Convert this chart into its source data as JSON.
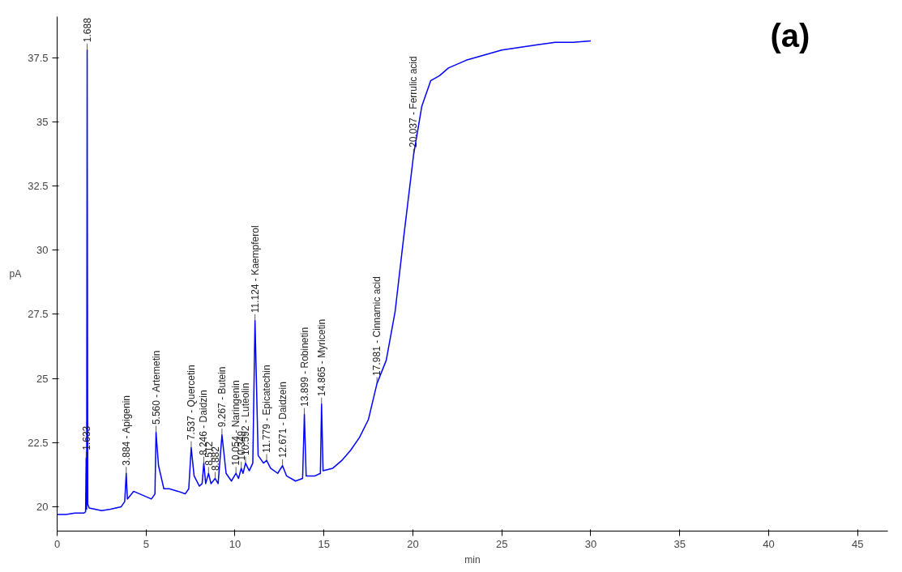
{
  "chart_data": {
    "type": "line",
    "xlabel": "min",
    "ylabel": "pA",
    "xlim": [
      0,
      46.7
    ],
    "ylim": [
      19.05,
      39.1
    ],
    "xticks": [
      0,
      5,
      10,
      15,
      20,
      25,
      30,
      35,
      40,
      45
    ],
    "yticks": [
      20,
      22.5,
      25,
      27.5,
      30,
      32.5,
      35,
      37.5
    ],
    "grid": false,
    "marker": "none",
    "line_style": "solid",
    "series": [
      {
        "color": "#0000ff",
        "x": [
          0,
          0.5,
          1.0,
          1.5,
          1.6,
          1.633,
          1.66,
          1.688,
          1.72,
          1.8,
          2.5,
          3.0,
          3.6,
          3.8,
          3.884,
          3.95,
          4.3,
          4.8,
          5.3,
          5.5,
          5.56,
          5.7,
          6.0,
          6.3,
          6.8,
          7.2,
          7.4,
          7.537,
          7.7,
          8.0,
          8.15,
          8.246,
          8.35,
          8.512,
          8.65,
          8.882,
          9.05,
          9.267,
          9.5,
          9.8,
          10.054,
          10.2,
          10.349,
          10.45,
          10.592,
          10.8,
          11.0,
          11.124,
          11.3,
          11.6,
          11.779,
          12.0,
          12.4,
          12.671,
          12.9,
          13.4,
          13.8,
          13.899,
          14.0,
          14.5,
          14.8,
          14.865,
          14.95,
          15.5,
          16.0,
          16.5,
          17.0,
          17.5,
          17.981,
          18.5,
          19.0,
          19.5,
          20.037,
          20.5,
          21.0,
          21.5,
          22.0,
          23.0,
          24.0,
          25.0,
          26.0,
          27.0,
          28.0,
          29.0,
          30.0
        ],
        "values": [
          19.7,
          19.7,
          19.75,
          19.75,
          19.8,
          21.9,
          19.9,
          37.8,
          20.1,
          19.95,
          19.85,
          19.9,
          20.0,
          20.2,
          21.3,
          20.3,
          20.6,
          20.45,
          20.3,
          20.5,
          22.9,
          21.6,
          20.7,
          20.7,
          20.6,
          20.5,
          20.7,
          22.3,
          21.2,
          20.8,
          20.9,
          21.7,
          20.9,
          21.3,
          20.9,
          21.1,
          20.9,
          22.8,
          21.3,
          21.0,
          21.3,
          21.1,
          21.5,
          21.3,
          21.7,
          21.4,
          21.7,
          27.25,
          22.0,
          21.7,
          21.8,
          21.5,
          21.3,
          21.6,
          21.2,
          21.0,
          21.1,
          23.6,
          21.2,
          21.2,
          21.3,
          24.0,
          21.4,
          21.5,
          21.8,
          22.2,
          22.7,
          23.4,
          24.8,
          25.7,
          27.6,
          30.6,
          33.7,
          35.6,
          36.6,
          36.8,
          37.1,
          37.4,
          37.6,
          37.8,
          37.9,
          38.0,
          38.1,
          38.1,
          38.15
        ]
      }
    ],
    "annotations": [
      {
        "text": "1.633",
        "x": 1.633,
        "y": 21.9
      },
      {
        "text": "1.688",
        "x": 1.688,
        "y": 37.8
      },
      {
        "text": "3.884 -  Apigenin",
        "x": 3.884,
        "y": 21.3
      },
      {
        "text": "5.560 -  Artemetin",
        "x": 5.56,
        "y": 22.9
      },
      {
        "text": "7.537 -  Quercetin",
        "x": 7.537,
        "y": 22.3
      },
      {
        "text": "8.246 -  Daidzin",
        "x": 8.246,
        "y": 21.7
      },
      {
        "text": "8.512",
        "x": 8.512,
        "y": 21.3
      },
      {
        "text": "8.882",
        "x": 8.882,
        "y": 21.1
      },
      {
        "text": "9.267 -  Butein",
        "x": 9.267,
        "y": 22.8
      },
      {
        "text": "10.054 -  Naringenin",
        "x": 10.054,
        "y": 21.3
      },
      {
        "text": "10.349",
        "x": 10.349,
        "y": 21.5
      },
      {
        "text": "10.592 -  Luteolin",
        "x": 10.592,
        "y": 21.7
      },
      {
        "text": "11.124 -  Kaempferol",
        "x": 11.124,
        "y": 27.25
      },
      {
        "text": "11.779 -  Epicatechin",
        "x": 11.779,
        "y": 21.8
      },
      {
        "text": "12.671 -  Daidzein",
        "x": 12.671,
        "y": 21.6
      },
      {
        "text": "13.899 -  Robinetin",
        "x": 13.899,
        "y": 23.6
      },
      {
        "text": "14.865 -  Myricetin",
        "x": 14.865,
        "y": 24.0
      },
      {
        "text": "17.981 -  Cinnamic acid",
        "x": 17.981,
        "y": 24.8
      },
      {
        "text": "20.037 -  Ferrulic acid",
        "x": 20.037,
        "y": 33.7
      },
      "(a)"
    ]
  }
}
